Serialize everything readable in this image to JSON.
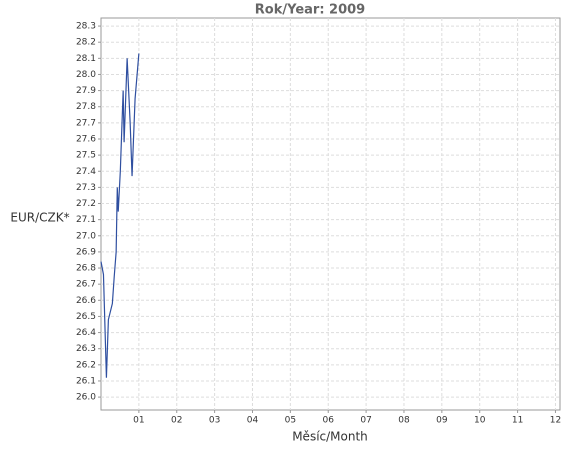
{
  "chart_data": {
    "type": "line",
    "title": "Rok/Year: 2009",
    "x_label": "Měsíc/Month",
    "y_label": "EUR/CZK*",
    "x": [
      0,
      0.065,
      0.143,
      0.195,
      0.3,
      0.35,
      0.4,
      0.43,
      0.455,
      0.51,
      0.585,
      0.61,
      0.69,
      0.77,
      0.82,
      0.9,
      1.0
    ],
    "series": [
      {
        "name": "EUR/CZK",
        "color": "#2f4fa0",
        "values": [
          26.84,
          26.76,
          26.12,
          26.48,
          26.58,
          26.75,
          26.9,
          27.3,
          27.15,
          27.4,
          27.9,
          27.58,
          28.1,
          27.7,
          27.37,
          27.85,
          28.13
        ]
      }
    ],
    "xlim": [
      0,
      12.12
    ],
    "xticks": [
      {
        "value": 1,
        "label": "01"
      },
      {
        "value": 2,
        "label": "02"
      },
      {
        "value": 3,
        "label": "03"
      },
      {
        "value": 4,
        "label": "04"
      },
      {
        "value": 5,
        "label": "05"
      },
      {
        "value": 6,
        "label": "06"
      },
      {
        "value": 7,
        "label": "07"
      },
      {
        "value": 8,
        "label": "08"
      },
      {
        "value": 9,
        "label": "09"
      },
      10,
      11,
      12
    ],
    "ylim": [
      25.92,
      28.35
    ],
    "yticks": [
      {
        "value": 26,
        "label": "26.0"
      },
      26.1,
      26.2,
      26.3,
      26.4,
      26.5,
      26.6,
      26.7,
      26.8,
      26.9,
      {
        "value": 27,
        "label": "27.0"
      },
      27.1,
      27.2,
      27.3,
      27.4,
      27.5,
      27.6,
      27.7,
      27.8,
      27.9,
      {
        "value": 28,
        "label": "28.0"
      },
      28.1,
      28.2,
      28.3
    ],
    "grid": true
  }
}
